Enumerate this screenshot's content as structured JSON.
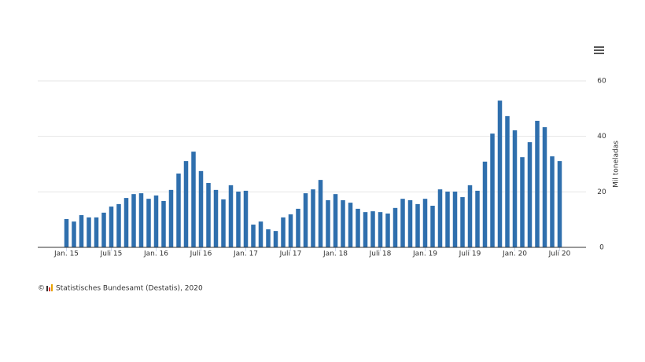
{
  "chart_data": {
    "type": "bar",
    "y_axis_label": "Mil toneladas",
    "copyright": "©",
    "source": "Statistisches Bundesamt (Destatis), 2020",
    "color": "#2f6fad",
    "ylim": [
      0,
      60
    ],
    "yticks": [
      0,
      20,
      40,
      60
    ],
    "grid": true,
    "categories": [
      "Jan. 15",
      null,
      null,
      null,
      null,
      null,
      "Juli 15",
      null,
      null,
      null,
      null,
      null,
      "Jan. 16",
      null,
      null,
      null,
      null,
      null,
      "Juli 16",
      null,
      null,
      null,
      null,
      null,
      "Jan. 17",
      null,
      null,
      null,
      null,
      null,
      "Juli 17",
      null,
      null,
      null,
      null,
      null,
      "Jan. 18",
      null,
      null,
      null,
      null,
      null,
      "Juli 18",
      null,
      null,
      null,
      null,
      null,
      "Jan. 19",
      null,
      null,
      null,
      null,
      null,
      "Juli 19",
      null,
      null,
      null,
      null,
      null,
      "Jan. 20",
      null,
      null,
      null,
      null,
      null,
      "Juli 20"
    ],
    "values": [
      10.2,
      9.3,
      11.6,
      10.8,
      10.8,
      12.5,
      14.7,
      15.6,
      17.8,
      19.2,
      19.5,
      17.5,
      18.7,
      16.7,
      20.7,
      26.6,
      31.1,
      34.5,
      27.5,
      23.2,
      20.7,
      17.3,
      22.4,
      20.1,
      20.4,
      8.2,
      9.3,
      6.5,
      5.9,
      10.8,
      11.9,
      13.9,
      19.5,
      20.9,
      24.3,
      17.0,
      19.2,
      17.0,
      16.1,
      13.9,
      12.7,
      13.0,
      12.7,
      12.2,
      14.2,
      17.5,
      17.0,
      15.6,
      17.5,
      15.0,
      20.9,
      20.1,
      20.1,
      18.1,
      22.4,
      20.4,
      30.9,
      41.0,
      52.9,
      47.3,
      42.2,
      32.5,
      37.9,
      45.6,
      43.3,
      32.8,
      31.1
    ]
  }
}
